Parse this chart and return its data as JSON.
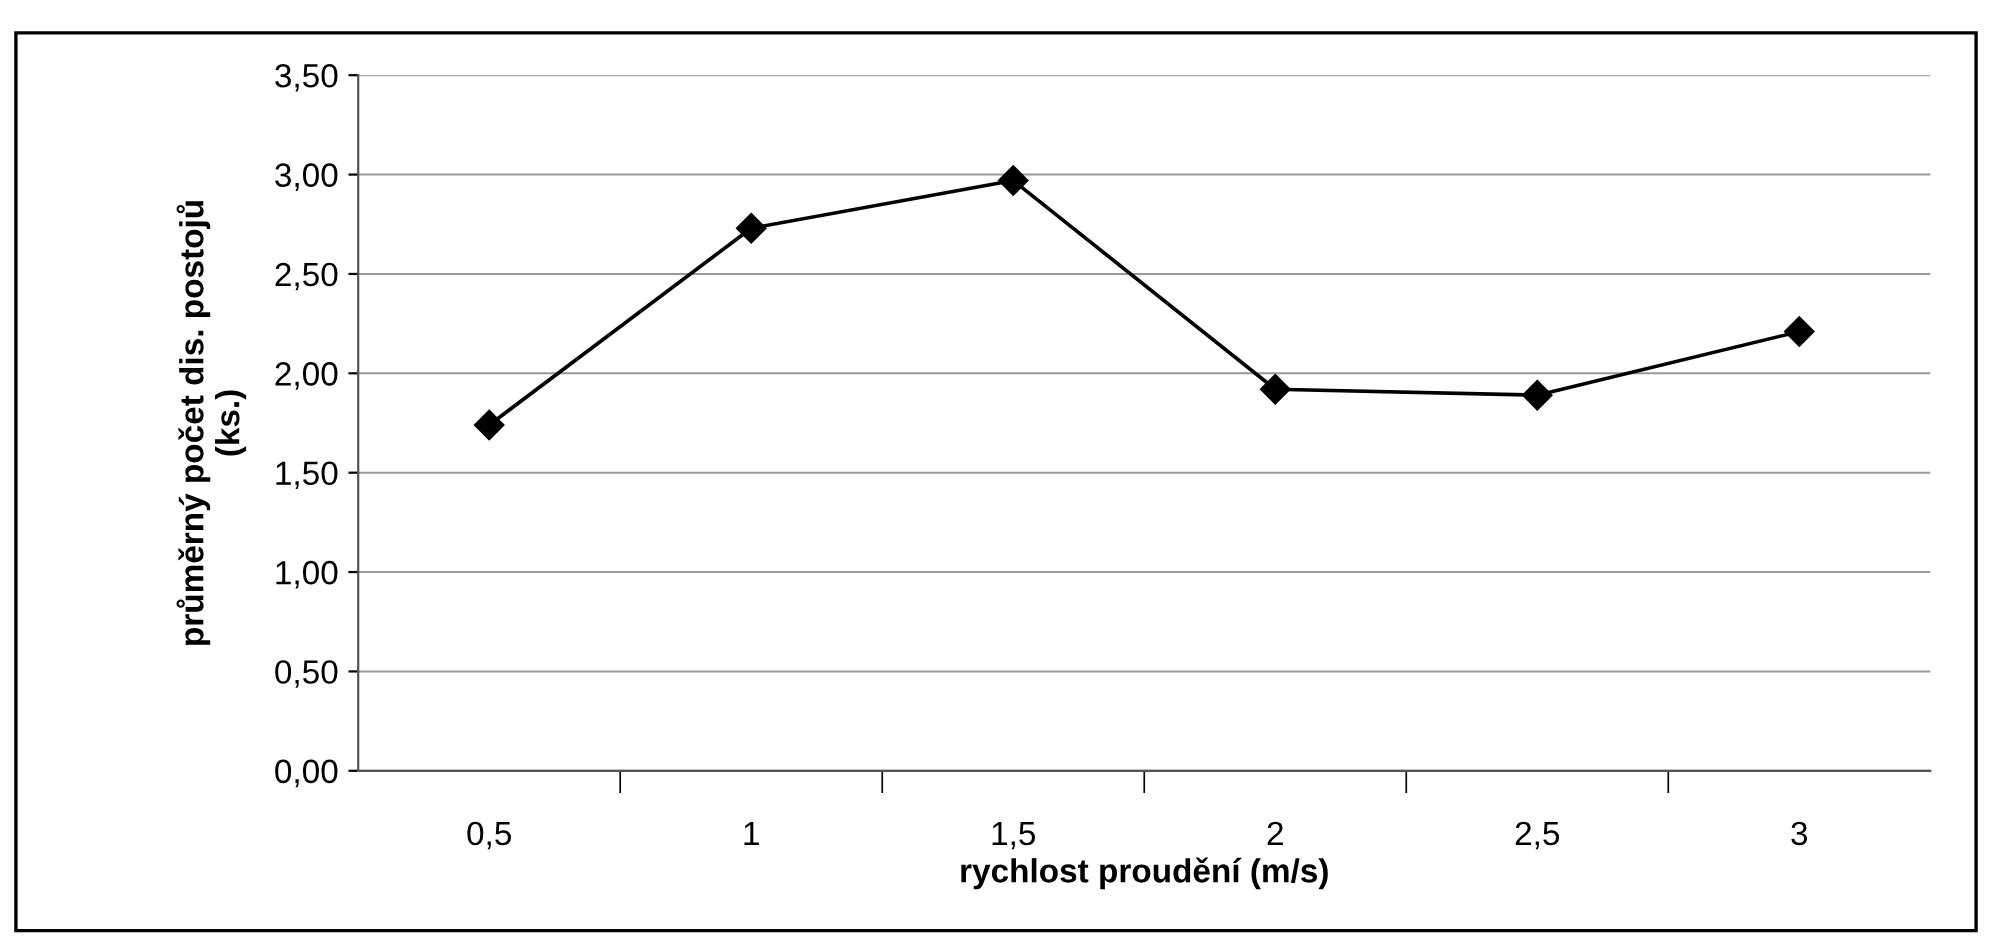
{
  "chart_data": {
    "type": "line",
    "xlabel": "rychlost proudění (m/s)",
    "ylabel": "průměrný počet dis. postojů\n(ks.)",
    "categories": [
      "0,5",
      "1",
      "1,5",
      "2",
      "2,5",
      "3"
    ],
    "series": [
      {
        "color": "#000000",
        "values": [
          1.74,
          2.73,
          2.97,
          1.92,
          1.89,
          2.21
        ]
      }
    ],
    "ylim": [
      0,
      3.5
    ],
    "yticks": [
      {
        "value": 0,
        "label": "0,00"
      },
      {
        "value": 0.5,
        "label": "0,50"
      },
      {
        "value": 1,
        "label": "1,00"
      },
      {
        "value": 1.5,
        "label": "1,50"
      },
      {
        "value": 2,
        "label": "2,00"
      },
      {
        "value": 2.5,
        "label": "2,50"
      },
      {
        "value": 3,
        "label": "3,00"
      },
      {
        "value": 3.5,
        "label": "3,50"
      }
    ],
    "grid": "y",
    "marker": "diamond",
    "line_style": "solid"
  }
}
